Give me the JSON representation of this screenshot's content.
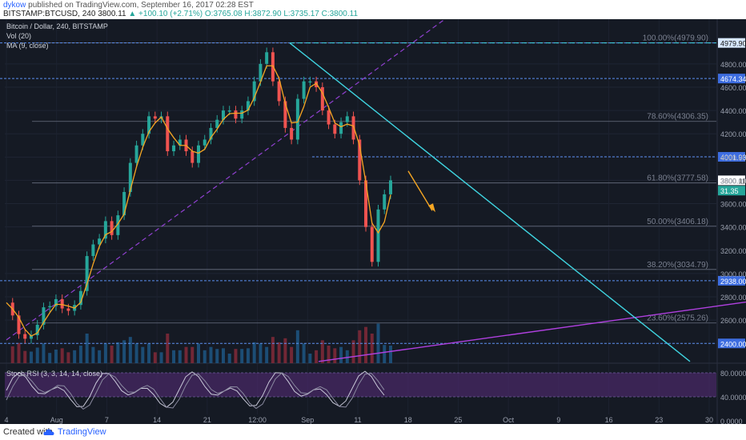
{
  "header": {
    "author": "dykow",
    "published": "published on TradingView.com, September 16, 2017 02:28 EST",
    "symbol": "BITSTAMP:BTCUSD, 240",
    "last": "3800.11",
    "change": "▲ +100.10 (+2.71%)",
    "open": "O:3765.08",
    "high": "H:3872.90",
    "low": "L:3735.17",
    "close": "C:3800.11"
  },
  "legend": {
    "title": "Bitcoin / Dollar, 240, BITSTAMP",
    "vol": "Vol (20)",
    "ma": "MA (9, close)"
  },
  "footer": {
    "created": "Created with",
    "brand": "TradingView"
  },
  "colors": {
    "background": "#151a24",
    "up": "#26a69a",
    "down": "#ef5350",
    "ma": "#f5a623",
    "trend_cyan": "#3fd4e0",
    "trend_purple": "#b040e0",
    "level_blue": "#5b8ff0",
    "stoch": "#c8c8d8"
  },
  "chart_data": {
    "type": "line",
    "title": "Bitcoin / Dollar, 240, BITSTAMP",
    "xlabel": "",
    "ylabel": "",
    "ylim": [
      2230,
      5060
    ],
    "x_ticks": [
      "4",
      "Aug",
      "7",
      "14",
      "21",
      "12:00",
      "Sep",
      "11",
      "18",
      "25",
      "Oct",
      "9",
      "16",
      "23",
      "30"
    ],
    "y_ticks": [
      2400,
      2600,
      2800,
      3000,
      3200,
      3400,
      3600,
      3800,
      4000,
      4200,
      4400,
      4600,
      4800
    ],
    "series": [
      {
        "values": [
          2750,
          2640,
          2480,
          2440,
          2470,
          2560,
          2710,
          2720,
          2780,
          2700,
          2680,
          2730,
          2850,
          3150,
          3250,
          3300,
          3450,
          3330,
          3500,
          3700,
          3950,
          4100,
          4200,
          4350,
          4330,
          4350,
          4050,
          4100,
          4150,
          4050,
          3950,
          4100,
          4150,
          4250,
          4320,
          4400,
          4400,
          4330,
          4400,
          4480,
          4650,
          4800,
          4900,
          4650,
          4480,
          4250,
          4150,
          4500,
          4650,
          4650,
          4600,
          4400,
          4280,
          4200,
          4300,
          4350,
          4150,
          3800,
          3400,
          3100,
          3550,
          3680,
          3800
        ]
      }
    ],
    "price_levels": [
      {
        "label": "4979.90",
        "value": 4979.9
      },
      {
        "label": "4674.34",
        "value": 4674.34
      },
      {
        "label": "4001.93",
        "value": 4001.93
      },
      {
        "label": "3800.11",
        "value": 3800.11
      },
      {
        "label": "2938.00",
        "value": 2938
      },
      {
        "label": "2400.00",
        "value": 2400
      }
    ],
    "fib_levels": [
      {
        "label": "100.00%(4979.90)",
        "value": 4979.9
      },
      {
        "label": "78.60%(4306.35)",
        "value": 4306.35
      },
      {
        "label": "61.80%(3777.58)",
        "value": 3777.58
      },
      {
        "label": "50.00%(3406.18)",
        "value": 3406.18
      },
      {
        "label": "38.20%(3034.79)",
        "value": 3034.79
      },
      {
        "label": "23.60%(2575.26)",
        "value": 2575.26
      }
    ],
    "volume_tag": "31.35",
    "stoch_rsi": {
      "label": "Stoch RSI (3, 3, 14, 14, close)",
      "ticks": [
        "80.0000",
        "40.0000",
        "0.0000"
      ]
    }
  }
}
